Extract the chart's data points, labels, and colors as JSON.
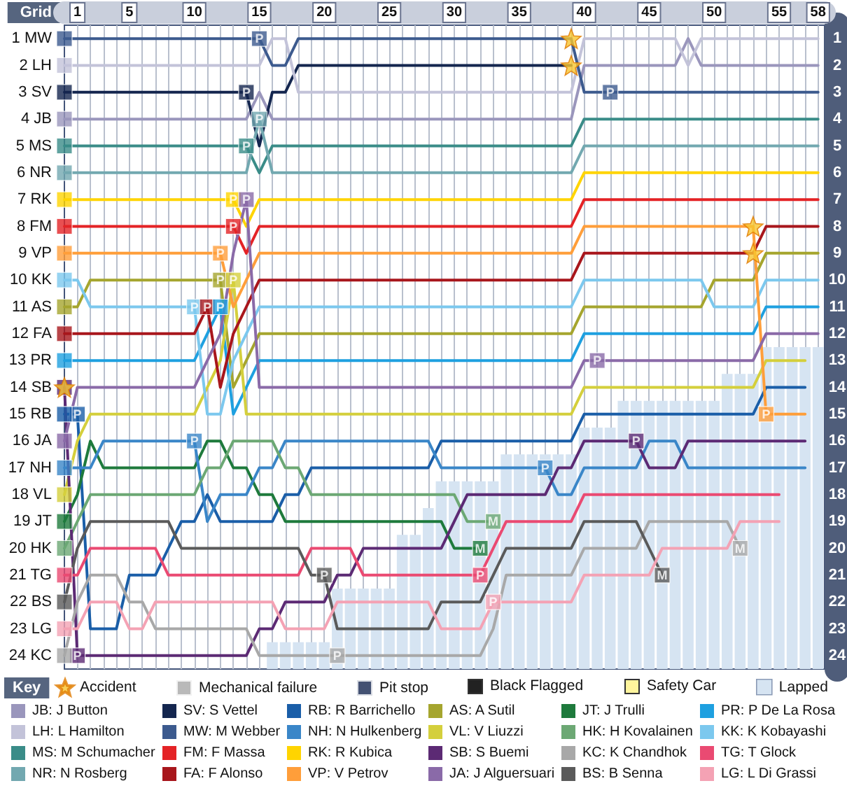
{
  "chart_data": {
    "type": "line",
    "ylabel": "Grid",
    "legend_title": "Key",
    "legend": "bottom",
    "grid": "x",
    "marker": "none",
    "annotations": [
      "Black Flagged",
      "Safety Car"
    ],
    "x": [
      0,
      1,
      2,
      3,
      4,
      5,
      6,
      7,
      8,
      9,
      10,
      11,
      12,
      13,
      14,
      15,
      16,
      17,
      18,
      19,
      20,
      21,
      22,
      23,
      24,
      25,
      26,
      27,
      28,
      29,
      30,
      31,
      32,
      33,
      34,
      35,
      36,
      37,
      38,
      39,
      40,
      41,
      42,
      43,
      44,
      45,
      46,
      47,
      48,
      49,
      50,
      51,
      52,
      53,
      54,
      55,
      56,
      57,
      58
    ],
    "xlim": [
      0,
      58.5
    ],
    "xticks": [
      1,
      {
        "value": 2,
        "label": null
      },
      {
        "value": 3,
        "label": null
      },
      {
        "value": 4,
        "label": null
      },
      5,
      {
        "value": 6,
        "label": null
      },
      {
        "value": 7,
        "label": null
      },
      {
        "value": 8,
        "label": null
      },
      {
        "value": 9,
        "label": null
      },
      10,
      {
        "value": 11,
        "label": null
      },
      {
        "value": 12,
        "label": null
      },
      {
        "value": 13,
        "label": null
      },
      {
        "value": 14,
        "label": null
      },
      15,
      {
        "value": 16,
        "label": null
      },
      {
        "value": 17,
        "label": null
      },
      {
        "value": 18,
        "label": null
      },
      {
        "value": 19,
        "label": null
      },
      20,
      {
        "value": 21,
        "label": null
      },
      {
        "value": 22,
        "label": null
      },
      {
        "value": 23,
        "label": null
      },
      {
        "value": 24,
        "label": null
      },
      25,
      {
        "value": 26,
        "label": null
      },
      {
        "value": 27,
        "label": null
      },
      {
        "value": 28,
        "label": null
      },
      {
        "value": 29,
        "label": null
      },
      30,
      {
        "value": 31,
        "label": null
      },
      {
        "value": 32,
        "label": null
      },
      {
        "value": 33,
        "label": null
      },
      {
        "value": 34,
        "label": null
      },
      35,
      {
        "value": 36,
        "label": null
      },
      {
        "value": 37,
        "label": null
      },
      {
        "value": 38,
        "label": null
      },
      {
        "value": 39,
        "label": null
      },
      40,
      {
        "value": 41,
        "label": null
      },
      {
        "value": 42,
        "label": null
      },
      {
        "value": 43,
        "label": null
      },
      {
        "value": 44,
        "label": null
      },
      45,
      {
        "value": 46,
        "label": null
      },
      {
        "value": 47,
        "label": null
      },
      {
        "value": 48,
        "label": null
      },
      {
        "value": 49,
        "label": null
      },
      50,
      {
        "value": 51,
        "label": null
      },
      {
        "value": 52,
        "label": null
      },
      {
        "value": 53,
        "label": null
      },
      {
        "value": 54,
        "label": null
      },
      55,
      {
        "value": 56,
        "label": null
      },
      {
        "value": 57,
        "label": null
      },
      58
    ],
    "ylim": [
      24.5,
      0.5
    ],
    "yticks": [
      {
        "value": 1,
        "label": "1 MW"
      },
      {
        "value": 2,
        "label": "2 LH"
      },
      {
        "value": 3,
        "label": "3 SV"
      },
      {
        "value": 4,
        "label": "4 JB"
      },
      {
        "value": 5,
        "label": "5 MS"
      },
      {
        "value": 6,
        "label": "6 NR"
      },
      {
        "value": 7,
        "label": "7 RK"
      },
      {
        "value": 8,
        "label": "8 FM"
      },
      {
        "value": 9,
        "label": "9 VP"
      },
      {
        "value": 10,
        "label": "10 KK"
      },
      {
        "value": 11,
        "label": "11 AS"
      },
      {
        "value": 12,
        "label": "12 FA"
      },
      {
        "value": 13,
        "label": "13 PR"
      },
      {
        "value": 14,
        "label": "14 SB"
      },
      {
        "value": 15,
        "label": "15 RB"
      },
      {
        "value": 16,
        "label": "16 JA"
      },
      {
        "value": 17,
        "label": "17 NH"
      },
      {
        "value": 18,
        "label": "18 VL"
      },
      {
        "value": 19,
        "label": "19 JT"
      },
      {
        "value": 20,
        "label": "20 HK"
      },
      {
        "value": 21,
        "label": "21 TG"
      },
      {
        "value": 22,
        "label": "22 BS"
      },
      {
        "value": 23,
        "label": "23 LG"
      },
      {
        "value": 24,
        "label": "24 KC"
      }
    ],
    "y2lim": [
      24.5,
      0.5
    ],
    "y2ticks": [
      1,
      2,
      3,
      4,
      5,
      6,
      7,
      8,
      9,
      10,
      11,
      12,
      13,
      14,
      15,
      16,
      17,
      18,
      19,
      20,
      21,
      22,
      23,
      24
    ],
    "series": [
      {
        "name": "Accident",
        "type": "scatter",
        "marker": "star",
        "color": "#f8c630",
        "x": [
          0,
          39,
          39,
          53,
          53
        ],
        "values": [
          14,
          1,
          2,
          8,
          9
        ]
      },
      {
        "name": "Mechanical failure",
        "type": "scatter",
        "marker": "square",
        "color": "#a8a8a8",
        "x": [
          32,
          33,
          46,
          52
        ],
        "values": [
          20,
          19,
          21,
          20
        ],
        "colors": [
          "#1e7a3c",
          "#6ca874",
          "#5a5a5a",
          "#a8a8a8"
        ],
        "value_labels": [
          "M",
          "M",
          "M",
          "M"
        ]
      },
      {
        "name": "Pit stop",
        "type": "scatter",
        "marker": "square",
        "color": "#14264f",
        "x": [
          1,
          1,
          10,
          10,
          11,
          12,
          12,
          12,
          13,
          13,
          13,
          14,
          14,
          14,
          15,
          15,
          20,
          21,
          32,
          33,
          37,
          41,
          42,
          44,
          54
        ],
        "values": [
          15,
          24,
          11,
          16,
          11,
          11,
          10,
          9,
          7,
          8,
          10,
          7,
          3,
          5,
          1,
          4,
          21,
          24,
          21,
          22,
          17,
          13,
          3,
          16,
          15
        ],
        "colors": [
          "#1a5ea8",
          "#5c2a74",
          "#7cc8ee",
          "#3a86c8",
          "#a8161c",
          "#1ea0e0",
          "#a5a52e",
          "#ff9e3a",
          "#ffd400",
          "#e42326",
          "#d4cf3c",
          "#8a6aa8",
          "#14264f",
          "#3a8c88",
          "#3c5a8e",
          "#72a8b0",
          "#5a5a5a",
          "#a8a8a8",
          "#ea4a72",
          "#f4a2b4",
          "#3a86c8",
          "#8a6aa8",
          "#3c5a8e",
          "#5c2a74",
          "#ff9e3a"
        ],
        "value_labels": [
          "P",
          "P",
          "P",
          "P",
          "P",
          "P",
          "P",
          "P",
          "P",
          "P",
          "P",
          "P",
          "P",
          "P",
          "P",
          "P",
          "P",
          "P",
          "P",
          "P",
          "P",
          "P",
          "P",
          "P",
          "P"
        ]
      },
      {
        "name": "Lapped",
        "type": "bar",
        "color": "#d6e4f2",
        "base": [
          null,
          null,
          null,
          null,
          null,
          null,
          null,
          null,
          null,
          null,
          null,
          null,
          null,
          null,
          null,
          null,
          23.5,
          23.5,
          23.5,
          23.5,
          23.5,
          21.5,
          21.5,
          21.5,
          21.5,
          21.5,
          19.5,
          19.5,
          18.5,
          17.5,
          17.5,
          17.5,
          17.5,
          17.5,
          16.5,
          16.5,
          16.5,
          16.5,
          16.5,
          16.5,
          15.5,
          15.5,
          15.5,
          14.5,
          14.5,
          14.5,
          14.5,
          14.5,
          14.5,
          14.5,
          14.5,
          13.5,
          13.5,
          13.5,
          12.5,
          12.5,
          12.5,
          12.5,
          12.5
        ],
        "values": [
          null,
          null,
          null,
          null,
          null,
          null,
          null,
          null,
          null,
          null,
          null,
          null,
          null,
          null,
          null,
          null,
          1,
          1,
          1,
          1,
          1,
          3,
          3,
          3,
          3,
          3,
          5,
          5,
          6,
          7,
          7,
          7,
          7,
          7,
          8,
          8,
          8,
          8,
          8,
          8,
          9,
          9,
          9,
          10,
          10,
          10,
          10,
          10,
          10,
          10,
          10,
          11,
          11,
          11,
          12,
          12,
          12,
          12,
          12
        ]
      },
      {
        "type": "scatter",
        "marker": "square",
        "x": [
          0,
          0,
          0,
          0,
          0,
          0,
          0,
          0,
          0,
          0,
          0,
          0,
          0,
          0,
          0,
          0,
          0,
          0,
          0,
          0,
          0,
          0,
          0,
          0
        ],
        "values": [
          1,
          2,
          3,
          4,
          5,
          6,
          7,
          8,
          9,
          10,
          11,
          12,
          13,
          14,
          15,
          16,
          17,
          18,
          19,
          20,
          21,
          22,
          23,
          24
        ],
        "colors": [
          "#3c5a8e",
          "#c3c3d9",
          "#14264f",
          "#9a96bc",
          "#3a8c88",
          "#72a8b0",
          "#ffd400",
          "#e42326",
          "#ff9e3a",
          "#7cc8ee",
          "#a5a52e",
          "#a8161c",
          "#1ea0e0",
          "#5c2a74",
          "#1a5ea8",
          "#8a6aa8",
          "#3a86c8",
          "#d4cf3c",
          "#1e7a3c",
          "#6ca874",
          "#ea4a72",
          "#5a5a5a",
          "#f4a2b4",
          "#a8a8a8"
        ]
      },
      {
        "name": "JB: J Button",
        "color": "#9a96bc",
        "values": [
          4,
          4,
          4,
          4,
          4,
          4,
          4,
          4,
          4,
          4,
          4,
          4,
          4,
          4,
          4,
          3,
          4,
          4,
          4,
          4,
          4,
          4,
          4,
          4,
          4,
          4,
          4,
          4,
          4,
          4,
          4,
          4,
          4,
          4,
          4,
          4,
          4,
          4,
          4,
          4,
          2,
          2,
          2,
          2,
          2,
          2,
          2,
          2,
          1,
          2,
          2,
          2,
          2,
          2,
          2,
          2,
          2,
          2,
          2
        ]
      },
      {
        "name": "SV: S Vettel",
        "color": "#14264f",
        "values": [
          3,
          3,
          3,
          3,
          3,
          3,
          3,
          3,
          3,
          3,
          3,
          3,
          3,
          3,
          3,
          5,
          3,
          3,
          2,
          2,
          2,
          2,
          2,
          2,
          2,
          2,
          2,
          2,
          2,
          2,
          2,
          2,
          2,
          2,
          2,
          2,
          2,
          2,
          2,
          2,
          null,
          null,
          null,
          null,
          null,
          null,
          null,
          null,
          null,
          null,
          null,
          null,
          null,
          null,
          null,
          null,
          null,
          null,
          null
        ]
      },
      {
        "name": "RB: R Barrichello",
        "color": "#1a5ea8",
        "values": [
          15,
          15,
          23,
          23,
          23,
          21,
          21,
          21,
          20,
          19,
          19,
          18,
          19,
          19,
          19,
          19,
          19,
          18,
          18,
          17,
          17,
          17,
          17,
          17,
          17,
          17,
          17,
          17,
          17,
          16,
          16,
          16,
          16,
          16,
          16,
          16,
          16,
          16,
          16,
          16,
          15,
          15,
          15,
          15,
          15,
          15,
          15,
          15,
          15,
          15,
          15,
          15,
          15,
          15,
          14,
          14,
          14,
          14,
          null
        ]
      },
      {
        "name": "AS: A Sutil",
        "color": "#a5a52e",
        "values": [
          11,
          11,
          10,
          10,
          10,
          10,
          10,
          10,
          10,
          10,
          10,
          10,
          10,
          14,
          13,
          12,
          12,
          12,
          12,
          12,
          12,
          12,
          12,
          12,
          12,
          12,
          12,
          12,
          12,
          12,
          12,
          12,
          12,
          12,
          12,
          12,
          12,
          12,
          12,
          12,
          11,
          11,
          11,
          11,
          11,
          11,
          11,
          11,
          11,
          11,
          10,
          10,
          10,
          10,
          9,
          9,
          9,
          9,
          9
        ]
      },
      {
        "name": "JT: J Trulli",
        "color": "#1e7a3c",
        "values": [
          19,
          18,
          16,
          17,
          17,
          17,
          17,
          17,
          17,
          17,
          17,
          16,
          16,
          17,
          17,
          18,
          18,
          19,
          19,
          19,
          19,
          19,
          19,
          19,
          19,
          19,
          19,
          19,
          19,
          19,
          20,
          20,
          20,
          null,
          null,
          null,
          null,
          null,
          null,
          null,
          null,
          null,
          null,
          null,
          null,
          null,
          null,
          null,
          null,
          null,
          null,
          null,
          null,
          null,
          null,
          null,
          null,
          null,
          null
        ]
      },
      {
        "name": "PR: P De La Rosa",
        "color": "#1ea0e0",
        "values": [
          13,
          13,
          13,
          13,
          13,
          13,
          13,
          13,
          13,
          13,
          13,
          12,
          11,
          15,
          14,
          13,
          13,
          13,
          13,
          13,
          13,
          13,
          13,
          13,
          13,
          13,
          13,
          13,
          13,
          13,
          13,
          13,
          13,
          13,
          13,
          13,
          13,
          13,
          13,
          13,
          12,
          12,
          12,
          12,
          12,
          12,
          12,
          12,
          12,
          12,
          12,
          12,
          12,
          12,
          11,
          11,
          11,
          11,
          11
        ]
      },
      {
        "name": "LH: L Hamilton",
        "color": "#c3c3d9",
        "values": [
          2,
          2,
          2,
          2,
          2,
          2,
          2,
          2,
          2,
          2,
          2,
          2,
          2,
          2,
          2,
          2,
          1,
          1,
          3,
          3,
          3,
          3,
          3,
          3,
          3,
          3,
          3,
          3,
          3,
          3,
          3,
          3,
          3,
          3,
          3,
          3,
          3,
          3,
          3,
          3,
          1,
          1,
          1,
          1,
          1,
          1,
          1,
          1,
          2,
          1,
          1,
          1,
          1,
          1,
          1,
          1,
          1,
          1,
          1
        ]
      },
      {
        "name": "MW: M Webber",
        "color": "#3c5a8e",
        "values": [
          1,
          1,
          1,
          1,
          1,
          1,
          1,
          1,
          1,
          1,
          1,
          1,
          1,
          1,
          1,
          1,
          2,
          2,
          1,
          1,
          1,
          1,
          1,
          1,
          1,
          1,
          1,
          1,
          1,
          1,
          1,
          1,
          1,
          1,
          1,
          1,
          1,
          1,
          1,
          1,
          3,
          3,
          3,
          3,
          3,
          3,
          3,
          3,
          3,
          3,
          3,
          3,
          3,
          3,
          3,
          3,
          3,
          3,
          3
        ]
      },
      {
        "name": "NH: N Hulkenberg",
        "color": "#3a86c8",
        "values": [
          17,
          17,
          17,
          16,
          16,
          16,
          16,
          16,
          16,
          16,
          16,
          19,
          18,
          18,
          18,
          17,
          17,
          16,
          16,
          16,
          16,
          16,
          16,
          16,
          16,
          16,
          16,
          16,
          16,
          17,
          17,
          17,
          17,
          17,
          17,
          17,
          17,
          17,
          18,
          18,
          17,
          17,
          17,
          17,
          17,
          16,
          16,
          16,
          17,
          17,
          17,
          17,
          17,
          17,
          17,
          17,
          17,
          17,
          null
        ]
      },
      {
        "name": "VL: V Liuzzi",
        "color": "#d4cf3c",
        "values": [
          18,
          16,
          15,
          15,
          15,
          15,
          15,
          15,
          15,
          15,
          15,
          14,
          13,
          10,
          15,
          15,
          15,
          15,
          15,
          15,
          15,
          15,
          15,
          15,
          15,
          15,
          15,
          15,
          15,
          15,
          15,
          15,
          15,
          15,
          15,
          15,
          15,
          15,
          15,
          15,
          14,
          14,
          14,
          14,
          14,
          14,
          14,
          14,
          14,
          14,
          14,
          14,
          14,
          14,
          13,
          13,
          13,
          13,
          null
        ]
      },
      {
        "name": "HK: H Kovalainen",
        "color": "#6ca874",
        "values": [
          20,
          19,
          18,
          18,
          18,
          18,
          18,
          18,
          18,
          18,
          18,
          17,
          17,
          16,
          16,
          16,
          16,
          17,
          17,
          18,
          18,
          18,
          18,
          18,
          18,
          18,
          18,
          18,
          18,
          18,
          18,
          19,
          19,
          19,
          null,
          null,
          null,
          null,
          null,
          null,
          null,
          null,
          null,
          null,
          null,
          null,
          null,
          null,
          null,
          null,
          null,
          null,
          null,
          null,
          null,
          null,
          null,
          null,
          null
        ]
      },
      {
        "name": "KK: K Kobayashi",
        "color": "#7cc8ee",
        "values": [
          10,
          10,
          11,
          11,
          11,
          11,
          11,
          11,
          11,
          11,
          11,
          15,
          15,
          13,
          12,
          11,
          11,
          11,
          11,
          11,
          11,
          11,
          11,
          11,
          11,
          11,
          11,
          11,
          11,
          11,
          11,
          11,
          11,
          11,
          11,
          11,
          11,
          11,
          11,
          11,
          10,
          10,
          10,
          10,
          10,
          10,
          10,
          10,
          10,
          10,
          11,
          11,
          11,
          11,
          10,
          10,
          10,
          10,
          10
        ]
      },
      {
        "name": "MS: M Schumacher",
        "color": "#3a8c88",
        "values": [
          5,
          5,
          5,
          5,
          5,
          5,
          5,
          5,
          5,
          5,
          5,
          5,
          5,
          5,
          5,
          6,
          5,
          5,
          5,
          5,
          5,
          5,
          5,
          5,
          5,
          5,
          5,
          5,
          5,
          5,
          5,
          5,
          5,
          5,
          5,
          5,
          5,
          5,
          5,
          5,
          4,
          4,
          4,
          4,
          4,
          4,
          4,
          4,
          4,
          4,
          4,
          4,
          4,
          4,
          4,
          4,
          4,
          4,
          4
        ]
      },
      {
        "name": "FM: F Massa",
        "color": "#e42326",
        "values": [
          8,
          8,
          8,
          8,
          8,
          8,
          8,
          8,
          8,
          8,
          8,
          8,
          8,
          8,
          9,
          8,
          8,
          8,
          8,
          8,
          8,
          8,
          8,
          8,
          8,
          8,
          8,
          8,
          8,
          8,
          8,
          8,
          8,
          8,
          8,
          8,
          8,
          8,
          8,
          8,
          7,
          7,
          7,
          7,
          7,
          7,
          7,
          7,
          7,
          7,
          7,
          7,
          7,
          7,
          7,
          7,
          7,
          7,
          7
        ]
      },
      {
        "name": "RK: R Kubica",
        "color": "#ffd400",
        "values": [
          7,
          7,
          7,
          7,
          7,
          7,
          7,
          7,
          7,
          7,
          7,
          7,
          7,
          7,
          8,
          7,
          7,
          7,
          7,
          7,
          7,
          7,
          7,
          7,
          7,
          7,
          7,
          7,
          7,
          7,
          7,
          7,
          7,
          7,
          7,
          7,
          7,
          7,
          7,
          7,
          6,
          6,
          6,
          6,
          6,
          6,
          6,
          6,
          6,
          6,
          6,
          6,
          6,
          6,
          6,
          6,
          6,
          6,
          6
        ]
      },
      {
        "name": "SB: S Buemi",
        "color": "#5c2a74",
        "values": [
          14,
          24,
          24,
          24,
          24,
          24,
          24,
          24,
          24,
          24,
          24,
          24,
          24,
          24,
          24,
          23,
          23,
          22,
          22,
          22,
          22,
          21,
          21,
          20,
          20,
          20,
          20,
          20,
          20,
          20,
          19,
          18,
          18,
          18,
          18,
          18,
          18,
          18,
          17,
          17,
          16,
          16,
          16,
          16,
          16,
          17,
          17,
          17,
          16,
          16,
          16,
          16,
          16,
          16,
          16,
          16,
          16,
          16,
          null
        ]
      },
      {
        "name": "KC: K Chandhok",
        "color": "#a8a8a8",
        "values": [
          24,
          22,
          21,
          21,
          21,
          22,
          22,
          23,
          23,
          23,
          23,
          23,
          23,
          23,
          23,
          24,
          24,
          24,
          24,
          24,
          24,
          24,
          24,
          24,
          24,
          24,
          24,
          24,
          24,
          24,
          24,
          24,
          24,
          23,
          21,
          21,
          21,
          21,
          21,
          21,
          20,
          20,
          20,
          20,
          20,
          19,
          19,
          19,
          19,
          19,
          19,
          19,
          20,
          null,
          null,
          null,
          null,
          null,
          null
        ]
      },
      {
        "name": "TG: T Glock",
        "color": "#ea4a72",
        "values": [
          21,
          21,
          20,
          20,
          20,
          20,
          20,
          20,
          21,
          21,
          21,
          21,
          21,
          21,
          21,
          21,
          21,
          21,
          21,
          20,
          20,
          20,
          20,
          21,
          21,
          21,
          21,
          21,
          21,
          21,
          21,
          21,
          21,
          20,
          19,
          19,
          19,
          19,
          19,
          19,
          18,
          18,
          18,
          18,
          18,
          18,
          18,
          18,
          18,
          18,
          18,
          18,
          18,
          18,
          18,
          18,
          null,
          null,
          null
        ]
      },
      {
        "name": "NR: N Rosberg",
        "color": "#72a8b0",
        "values": [
          6,
          6,
          6,
          6,
          6,
          6,
          6,
          6,
          6,
          6,
          6,
          6,
          6,
          6,
          6,
          4,
          6,
          6,
          6,
          6,
          6,
          6,
          6,
          6,
          6,
          6,
          6,
          6,
          6,
          6,
          6,
          6,
          6,
          6,
          6,
          6,
          6,
          6,
          6,
          6,
          5,
          5,
          5,
          5,
          5,
          5,
          5,
          5,
          5,
          5,
          5,
          5,
          5,
          5,
          5,
          5,
          5,
          5,
          5
        ]
      },
      {
        "name": "FA: F Alonso",
        "color": "#a8161c",
        "values": [
          12,
          12,
          12,
          12,
          12,
          12,
          12,
          12,
          12,
          12,
          12,
          11,
          14,
          12,
          11,
          10,
          10,
          10,
          10,
          10,
          10,
          10,
          10,
          10,
          10,
          10,
          10,
          10,
          10,
          10,
          10,
          10,
          10,
          10,
          10,
          10,
          10,
          10,
          10,
          10,
          9,
          9,
          9,
          9,
          9,
          9,
          9,
          9,
          9,
          9,
          9,
          9,
          9,
          9,
          8,
          8,
          8,
          8,
          8
        ]
      },
      {
        "name": "VP: V Petrov",
        "color": "#ff9e3a",
        "values": [
          9,
          9,
          9,
          9,
          9,
          9,
          9,
          9,
          9,
          9,
          9,
          9,
          9,
          11,
          10,
          9,
          9,
          9,
          9,
          9,
          9,
          9,
          9,
          9,
          9,
          9,
          9,
          9,
          9,
          9,
          9,
          9,
          9,
          9,
          9,
          9,
          9,
          9,
          9,
          9,
          8,
          8,
          8,
          8,
          8,
          8,
          8,
          8,
          8,
          8,
          8,
          8,
          8,
          8,
          15,
          15,
          15,
          15,
          null
        ]
      },
      {
        "name": "JA: J Alguersuari",
        "color": "#8a6aa8",
        "values": [
          16,
          14,
          14,
          14,
          14,
          14,
          14,
          14,
          14,
          14,
          14,
          13,
          12,
          9,
          7,
          14,
          14,
          14,
          14,
          14,
          14,
          14,
          14,
          14,
          14,
          14,
          14,
          14,
          14,
          14,
          14,
          14,
          14,
          14,
          14,
          14,
          14,
          14,
          14,
          14,
          13,
          13,
          13,
          13,
          13,
          13,
          13,
          13,
          13,
          13,
          13,
          13,
          13,
          13,
          12,
          12,
          12,
          12,
          12
        ]
      },
      {
        "name": "BS: B Senna",
        "color": "#5a5a5a",
        "values": [
          22,
          20,
          19,
          19,
          19,
          19,
          19,
          19,
          19,
          20,
          20,
          20,
          20,
          20,
          20,
          20,
          20,
          20,
          20,
          21,
          21,
          23,
          23,
          23,
          23,
          23,
          23,
          23,
          23,
          22,
          22,
          22,
          22,
          21,
          20,
          20,
          20,
          20,
          20,
          20,
          19,
          19,
          19,
          19,
          19,
          20,
          21,
          null,
          null,
          null,
          null,
          null,
          null,
          null,
          null,
          null,
          null,
          null,
          null
        ]
      },
      {
        "name": "LG: L Di Grassi",
        "color": "#f4a2b4",
        "values": [
          23,
          23,
          22,
          22,
          22,
          23,
          23,
          22,
          22,
          22,
          22,
          22,
          22,
          22,
          22,
          22,
          22,
          23,
          23,
          23,
          23,
          22,
          22,
          22,
          22,
          22,
          22,
          22,
          22,
          23,
          23,
          23,
          23,
          22,
          22,
          22,
          22,
          22,
          22,
          22,
          21,
          21,
          21,
          21,
          21,
          21,
          20,
          20,
          20,
          20,
          20,
          20,
          19,
          19,
          19,
          19,
          null,
          null,
          null
        ]
      }
    ]
  }
}
